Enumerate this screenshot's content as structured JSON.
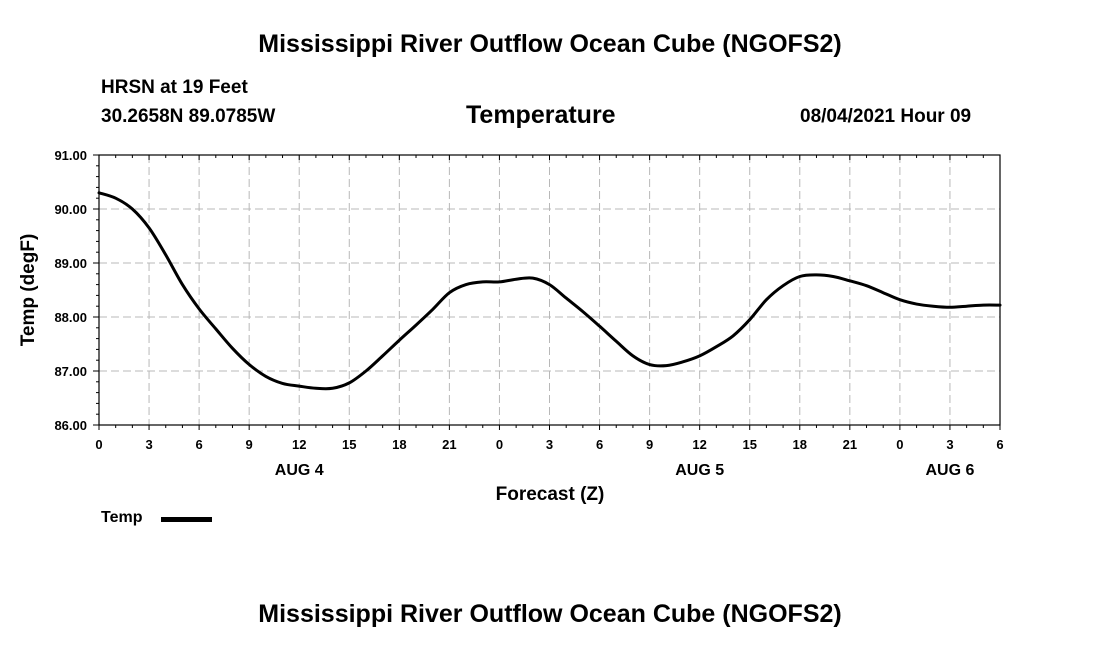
{
  "header": {
    "title": "Mississippi River Outflow Ocean Cube (NGOFS2)",
    "station_line": "HRSN at 19 Feet",
    "location": "30.2658N  89.0785W",
    "plot_title": "Temperature",
    "datetime": "08/04/2021 Hour 09"
  },
  "footer": {
    "title": "Mississippi River Outflow Ocean Cube (NGOFS2)"
  },
  "chart_data": {
    "type": "line",
    "title": "Temperature",
    "xlabel": "Forecast (Z)",
    "ylabel": "Temp (degF)",
    "xlim": [
      0,
      54
    ],
    "ylim": [
      86.0,
      91.0
    ],
    "grid": true,
    "x_tick_values": [
      0,
      3,
      6,
      9,
      12,
      15,
      18,
      21,
      24,
      27,
      30,
      33,
      36,
      39,
      42,
      45,
      48,
      51,
      54
    ],
    "x_tick_labels": [
      "0",
      "3",
      "6",
      "9",
      "12",
      "15",
      "18",
      "21",
      "0",
      "3",
      "6",
      "9",
      "12",
      "15",
      "18",
      "21",
      "0",
      "3",
      "6"
    ],
    "y_tick_values": [
      86.0,
      87.0,
      88.0,
      89.0,
      90.0,
      91.0
    ],
    "y_tick_labels": [
      "86.00",
      "87.00",
      "88.00",
      "89.00",
      "90.00",
      "91.00"
    ],
    "day_labels": [
      {
        "x": 12,
        "label": "AUG 4"
      },
      {
        "x": 36,
        "label": "AUG 5"
      },
      {
        "x": 51,
        "label": "AUG 6"
      }
    ],
    "legend": {
      "position": "bottom-left",
      "entries": [
        "Temp"
      ]
    },
    "series": [
      {
        "name": "Temp",
        "x": [
          0,
          1,
          2,
          3,
          4,
          5,
          6,
          7,
          8,
          9,
          10,
          11,
          12,
          13,
          14,
          15,
          16,
          17,
          18,
          19,
          20,
          21,
          22,
          23,
          24,
          25,
          26,
          27,
          28,
          29,
          30,
          31,
          32,
          33,
          34,
          35,
          36,
          37,
          38,
          39,
          40,
          41,
          42,
          43,
          44,
          45,
          46,
          47,
          48,
          49,
          50,
          51,
          52,
          53,
          54
        ],
        "values": [
          90.3,
          90.2,
          90.0,
          89.65,
          89.15,
          88.6,
          88.15,
          87.78,
          87.42,
          87.12,
          86.9,
          86.77,
          86.72,
          86.68,
          86.68,
          86.78,
          87.0,
          87.28,
          87.57,
          87.85,
          88.14,
          88.45,
          88.6,
          88.65,
          88.65,
          88.7,
          88.72,
          88.6,
          88.35,
          88.1,
          87.83,
          87.55,
          87.28,
          87.12,
          87.1,
          87.17,
          87.28,
          87.45,
          87.65,
          87.95,
          88.32,
          88.58,
          88.75,
          88.78,
          88.75,
          88.67,
          88.58,
          88.45,
          88.32,
          88.24,
          88.2,
          88.18,
          88.2,
          88.22,
          88.22
        ]
      }
    ]
  }
}
